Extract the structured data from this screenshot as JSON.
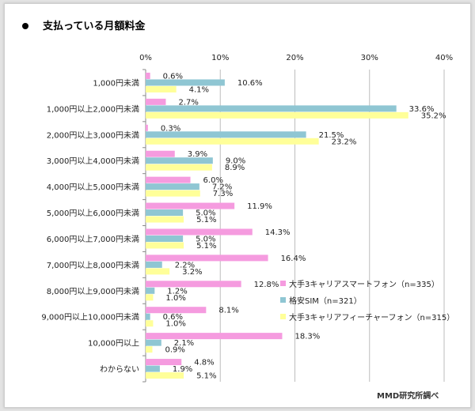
{
  "title": "支払っている月額料金",
  "source": "MMD研究所調べ",
  "colors": {
    "series1": "#f59bdf",
    "series2": "#8fc6d3",
    "series3": "#ffff99",
    "grid": "#bdbdbd",
    "text": "#222222"
  },
  "chart_data": {
    "type": "bar",
    "orientation": "horizontal",
    "grid": true,
    "legend_position": "right-center",
    "xlim": [
      0,
      40
    ],
    "xticks": [
      "0%",
      "10%",
      "20%",
      "30%",
      "40%"
    ],
    "categories": [
      "1,000円未満",
      "1,000円以上2,000円未満",
      "2,000円以上3,000円未満",
      "3,000円以上4,000円未満",
      "4,000円以上5,000円未満",
      "5,000円以上6,000円未満",
      "6,000円以上7,000円未満",
      "7,000円以上8,000円未満",
      "8,000円以上9,000円未満",
      "9,000円以上10,000円未満",
      "10,000円以上",
      "わからない"
    ],
    "series": [
      {
        "name": "大手3キャリアスマートフォン（n=335）",
        "values": [
          0.6,
          2.7,
          0.3,
          3.9,
          6.0,
          11.9,
          14.3,
          16.4,
          12.8,
          8.1,
          18.3,
          4.8
        ],
        "labels": [
          "0.6%",
          "2.7%",
          "0.3%",
          "3.9%",
          "6.0%",
          "11.9%",
          "14.3%",
          "16.4%",
          "12.8%",
          "8.1%",
          "18.3%",
          "4.8%"
        ]
      },
      {
        "name": "格安SIM（n=321）",
        "values": [
          10.6,
          33.6,
          21.5,
          9.0,
          7.2,
          5.0,
          5.0,
          2.2,
          1.2,
          0.6,
          2.1,
          1.9
        ],
        "labels": [
          "10.6%",
          "33.6%",
          "21.5%",
          "9.0%",
          "7.2%",
          "5.0%",
          "5.0%",
          "2.2%",
          "1.2%",
          "0.6%",
          "2.1%",
          "1.9%"
        ]
      },
      {
        "name": "大手3キャリアフィーチャーフォン（n=315）",
        "values": [
          4.1,
          35.2,
          23.2,
          8.9,
          7.3,
          5.1,
          5.1,
          3.2,
          1.0,
          1.0,
          0.9,
          5.1
        ],
        "labels": [
          "4.1%",
          "35.2%",
          "23.2%",
          "8.9%",
          "7.3%",
          "5.1%",
          "5.1%",
          "3.2%",
          "1.0%",
          "1.0%",
          "0.9%",
          "5.1%"
        ]
      }
    ]
  }
}
